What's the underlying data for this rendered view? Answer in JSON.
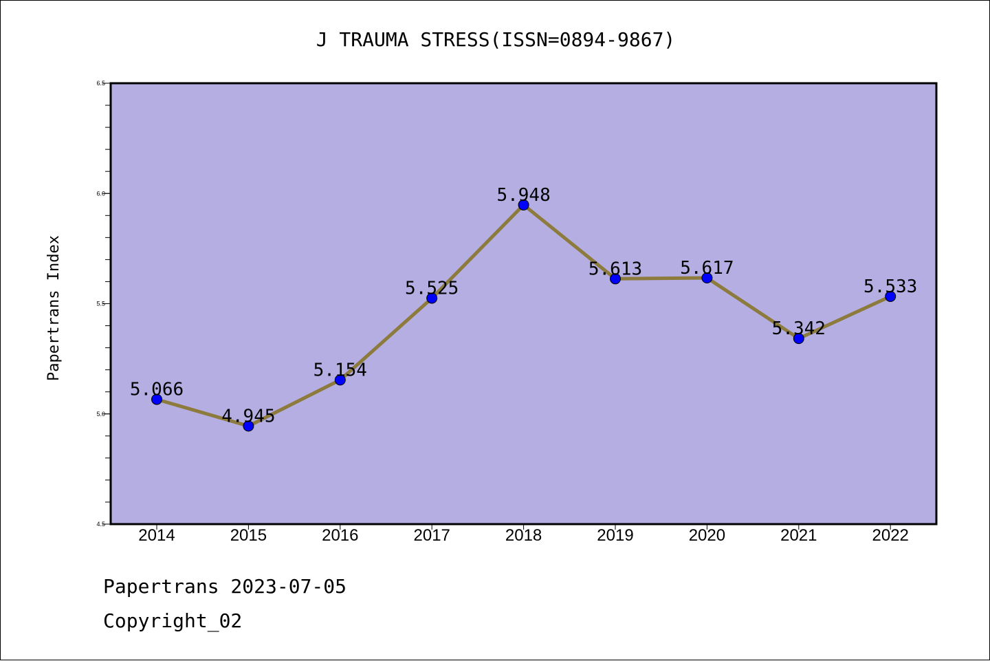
{
  "chart_data": {
    "type": "line",
    "title": "J TRAUMA STRESS(ISSN=0894-9867)",
    "xlabel": "",
    "ylabel": "Papertrans Index",
    "categories": [
      "2014",
      "2015",
      "2016",
      "2017",
      "2018",
      "2019",
      "2020",
      "2021",
      "2022"
    ],
    "series": [
      {
        "values": [
          5.066,
          4.945,
          5.154,
          5.525,
          5.948,
          5.613,
          5.617,
          5.342,
          5.533
        ],
        "labels": [
          "5.066",
          "4.945",
          "5.154",
          "5.525",
          "5.948",
          "5.613",
          "5.617",
          "5.342",
          "5.533"
        ]
      }
    ],
    "ylim": [
      4.5,
      6.5
    ],
    "yticks": [
      "4.5",
      "5.0",
      "5.5",
      "6.0",
      "6.5"
    ],
    "grid": false,
    "colors": {
      "plot_background": "#b5aee2",
      "line": "#8c7b3c",
      "marker": "#0000ff"
    }
  },
  "footer": {
    "line1": "Papertrans 2023-07-05",
    "line2": "Copyright_02"
  }
}
